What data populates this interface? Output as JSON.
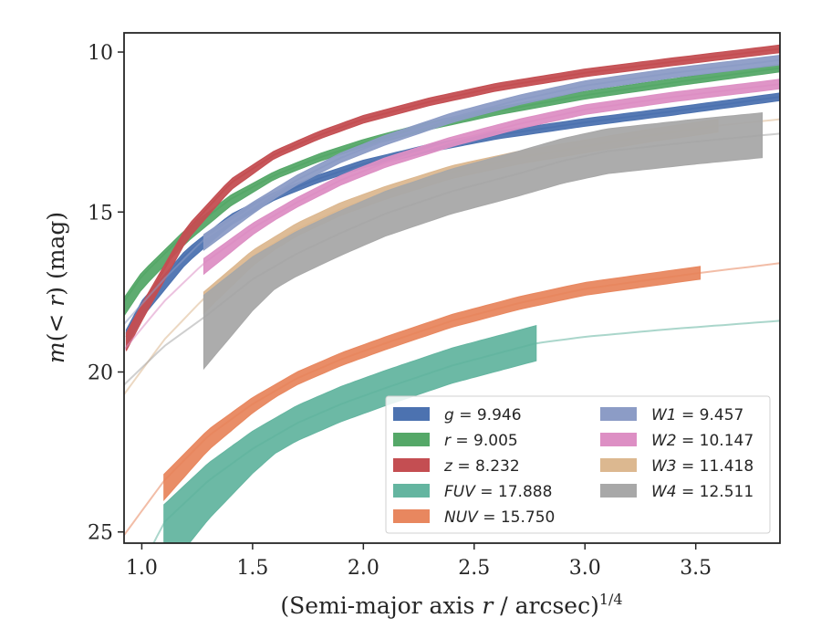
{
  "chart_data": {
    "type": "line",
    "title": "",
    "xlabel": "(Semi-major axis r / arcsec)",
    "xlabel_sup": "1/4",
    "ylabel": "m(< r) (mag)",
    "xlim": [
      0.92,
      3.88
    ],
    "ylim": [
      25.35,
      9.4
    ],
    "y_inverted": true,
    "xticks": [
      "1.0",
      "1.5",
      "2.0",
      "2.5",
      "3.0",
      "3.5"
    ],
    "xtick_values": [
      1.0,
      1.5,
      2.0,
      2.5,
      3.0,
      3.5
    ],
    "yticks": [
      "10",
      "15",
      "20",
      "25"
    ],
    "ytick_values": [
      10,
      15,
      20,
      25
    ],
    "grid": false,
    "legend_position": "lower-right",
    "series": [
      {
        "key": "g",
        "label": "g = 9.946",
        "color": "#4c72b0",
        "band": 0.12,
        "x": [
          0.93,
          1.0,
          1.2,
          1.4,
          1.6,
          1.8,
          2.0,
          2.3,
          2.6,
          3.0,
          3.4,
          3.88
        ],
        "y": [
          18.8,
          17.9,
          16.3,
          15.2,
          14.5,
          13.95,
          13.5,
          13.0,
          12.6,
          12.2,
          11.85,
          11.4
        ]
      },
      {
        "key": "r",
        "label": "r = 9.005",
        "color": "#55a868",
        "band": 0.12,
        "x": [
          0.92,
          1.0,
          1.2,
          1.4,
          1.6,
          1.8,
          2.0,
          2.3,
          2.6,
          3.0,
          3.4,
          3.88
        ],
        "y": [
          17.8,
          17.0,
          15.65,
          14.6,
          13.85,
          13.3,
          12.85,
          12.3,
          11.85,
          11.35,
          10.95,
          10.5
        ]
      },
      {
        "key": "z",
        "label": "z = 8.232",
        "color": "#c44e52",
        "band": 0.12,
        "x": [
          0.93,
          1.0,
          1.2,
          1.4,
          1.6,
          1.8,
          2.0,
          2.3,
          2.6,
          3.0,
          3.4,
          3.88
        ],
        "y": [
          18.9,
          18.0,
          15.6,
          14.1,
          13.2,
          12.6,
          12.1,
          11.55,
          11.1,
          10.65,
          10.3,
          9.9
        ]
      },
      {
        "key": "FUV",
        "label": "FUV = 17.888",
        "color": "#64b5a0",
        "band": 0.55,
        "solid_range": [
          1.1,
          2.78
        ],
        "x": [
          0.92,
          1.1,
          1.3,
          1.5,
          1.7,
          1.9,
          2.1,
          2.4,
          2.78,
          3.0,
          3.4,
          3.88
        ],
        "y": [
          27.2,
          24.7,
          23.4,
          22.4,
          21.6,
          21.0,
          20.5,
          19.8,
          19.1,
          18.9,
          18.65,
          18.4
        ]
      },
      {
        "key": "NUV",
        "label": "NUV = 15.750",
        "color": "#e8875f",
        "band": 0.2,
        "solid_range": [
          1.1,
          3.52
        ],
        "x": [
          0.92,
          1.1,
          1.3,
          1.5,
          1.7,
          1.9,
          2.1,
          2.4,
          2.7,
          3.0,
          3.52,
          3.88
        ],
        "y": [
          25.1,
          23.4,
          22.0,
          21.0,
          20.2,
          19.6,
          19.1,
          18.4,
          17.85,
          17.4,
          16.9,
          16.6
        ]
      },
      {
        "key": "W1",
        "label": "W1 = 9.457",
        "color": "#8c9cc6",
        "band": 0.15,
        "solid_range": [
          1.28,
          3.88
        ],
        "x": [
          0.92,
          1.1,
          1.28,
          1.5,
          1.7,
          1.9,
          2.1,
          2.4,
          2.7,
          3.0,
          3.4,
          3.88
        ],
        "y": [
          18.5,
          17.1,
          15.85,
          14.85,
          14.0,
          13.3,
          12.75,
          12.05,
          11.5,
          11.05,
          10.65,
          10.25
        ]
      },
      {
        "key": "W2",
        "label": "W2 = 10.147",
        "color": "#dd8fc4",
        "band": 0.15,
        "solid_range": [
          1.28,
          3.88
        ],
        "x": [
          0.92,
          1.1,
          1.28,
          1.5,
          1.7,
          1.9,
          2.1,
          2.4,
          2.7,
          3.0,
          3.4,
          3.88
        ],
        "y": [
          19.3,
          17.8,
          16.6,
          15.5,
          14.7,
          14.0,
          13.45,
          12.8,
          12.25,
          11.8,
          11.4,
          11.0
        ]
      },
      {
        "key": "W3",
        "label": "W3 = 11.418",
        "color": "#dcb890",
        "band": 0.2,
        "solid_range": [
          1.28,
          3.6
        ],
        "x": [
          0.92,
          1.1,
          1.28,
          1.5,
          1.7,
          1.9,
          2.1,
          2.4,
          2.7,
          3.0,
          3.3,
          3.6,
          3.88
        ],
        "y": [
          20.7,
          19.0,
          17.7,
          16.4,
          15.55,
          14.9,
          14.4,
          13.75,
          13.3,
          12.95,
          12.6,
          12.3,
          12.1
        ]
      },
      {
        "key": "W4",
        "label": "W4 = 12.511",
        "color": "#a8a8a8",
        "band": 0.7,
        "solid_range": [
          1.28,
          3.8
        ],
        "x": [
          0.92,
          1.1,
          1.28,
          1.5,
          1.7,
          1.9,
          2.1,
          2.4,
          2.7,
          2.9,
          3.1,
          3.3,
          3.5,
          3.8,
          3.88
        ],
        "y": [
          20.4,
          19.2,
          18.3,
          17.1,
          16.3,
          15.65,
          15.05,
          14.35,
          13.8,
          13.4,
          13.1,
          12.95,
          12.8,
          12.6,
          12.55
        ]
      }
    ]
  }
}
